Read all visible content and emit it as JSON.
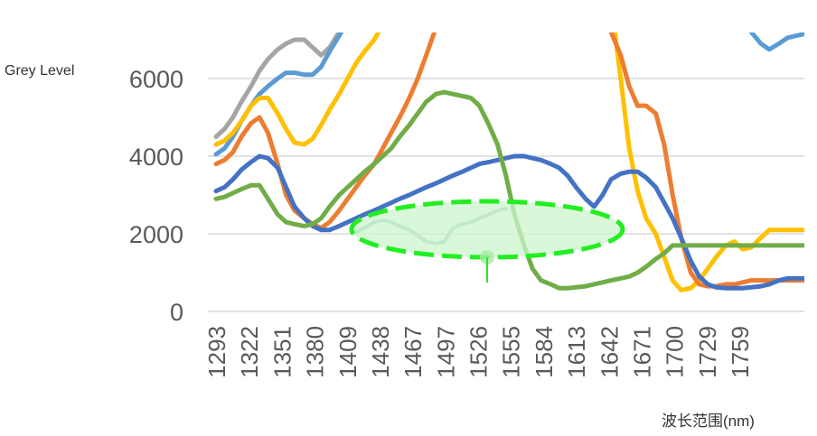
{
  "chart_data": {
    "type": "line",
    "title": "",
    "ylabel": "Grey Level",
    "xlabel": "波长范围(nm)",
    "ylim": [
      0,
      7000
    ],
    "yticks": [
      0,
      2000,
      4000,
      6000
    ],
    "xticks": [
      "1293",
      "1322",
      "1351",
      "1380",
      "1409",
      "1438",
      "1467",
      "1497",
      "1526",
      "1555",
      "1584",
      "1613",
      "1642",
      "1671",
      "1700",
      "1729",
      "1759"
    ],
    "x": [
      1293,
      1300,
      1307,
      1314,
      1322,
      1329,
      1336,
      1344,
      1351,
      1358,
      1366,
      1373,
      1380,
      1387,
      1395,
      1402,
      1409,
      1416,
      1424,
      1431,
      1438,
      1445,
      1453,
      1460,
      1467,
      1475,
      1482,
      1489,
      1497,
      1504,
      1511,
      1519,
      1526,
      1533,
      1540,
      1548,
      1555,
      1562,
      1570,
      1577,
      1584,
      1591,
      1599,
      1606,
      1613,
      1620,
      1628,
      1635,
      1642,
      1649,
      1657,
      1664,
      1671,
      1678,
      1686,
      1693,
      1700,
      1707,
      1715,
      1722,
      1729,
      1736,
      1744,
      1751,
      1759,
      1766,
      1773,
      1780
    ],
    "grid": "horizontal",
    "colors": {
      "grid": "#d9d9d9",
      "ellipse_stroke": "#22ee22",
      "ellipse_fill": "#ccf5cc"
    },
    "series": [
      {
        "color": "#a5a5a5",
        "values": [
          4500,
          4700,
          5000,
          5400,
          5800,
          6200,
          6500,
          6750,
          6900,
          7000,
          7000,
          6800,
          6600,
          6800,
          7200,
          7500,
          7800,
          8000,
          8000,
          8000,
          8000,
          8000,
          8000,
          8000,
          8000,
          8000,
          8000,
          8000,
          8000,
          8000,
          8000,
          8000,
          8000,
          8000,
          8000,
          8000,
          8000,
          8000,
          8000,
          8000,
          8000,
          8000,
          8000,
          8000,
          8000,
          8000,
          8000,
          8000,
          8000,
          8000,
          8000,
          8000,
          8000,
          8000,
          8000,
          8000,
          8000,
          8000,
          8000,
          8000,
          8000,
          8000,
          8000,
          8000,
          8000,
          8000,
          8000,
          8000
        ]
      },
      {
        "color": "#5b9bd5",
        "values": [
          4050,
          4200,
          4500,
          4900,
          5300,
          5600,
          5800,
          6000,
          6150,
          6150,
          6100,
          6100,
          6300,
          6700,
          7100,
          7500,
          7800,
          8000,
          8000,
          8000,
          8000,
          8000,
          8000,
          8000,
          8000,
          8000,
          8000,
          8000,
          8000,
          8000,
          8000,
          8000,
          8000,
          8000,
          8000,
          8000,
          8000,
          8000,
          8000,
          8000,
          8000,
          8000,
          8000,
          8000,
          8000,
          8000,
          8000,
          8000,
          8000,
          8000,
          8000,
          8000,
          8000,
          8000,
          8000,
          8000,
          8000,
          8000,
          8000,
          8000,
          8000,
          7200,
          6900,
          6750,
          6900,
          7050,
          7100,
          7150
        ]
      },
      {
        "color": "#ffc000",
        "values": [
          4300,
          4400,
          4600,
          4900,
          5300,
          5500,
          5500,
          5100,
          4700,
          4350,
          4300,
          4450,
          4800,
          5200,
          5600,
          6000,
          6400,
          6700,
          7000,
          7400,
          7800,
          8000,
          8000,
          8000,
          8000,
          8000,
          8000,
          8000,
          8000,
          8000,
          8000,
          8000,
          8000,
          8000,
          8000,
          8000,
          8000,
          8000,
          8000,
          8000,
          8000,
          8000,
          8000,
          8000,
          8000,
          8000,
          6000,
          4200,
          3100,
          2400,
          2000,
          1400,
          800,
          550,
          600,
          800,
          1100,
          1400,
          1700,
          1800,
          1600,
          1650,
          1900,
          2100,
          2100,
          2100,
          2100,
          2100
        ]
      },
      {
        "color": "#ed7d31",
        "values": [
          3800,
          3900,
          4100,
          4500,
          4850,
          5000,
          4600,
          3800,
          3000,
          2600,
          2400,
          2250,
          2150,
          2300,
          2600,
          2900,
          3200,
          3500,
          3800,
          4200,
          4600,
          5000,
          5500,
          6000,
          6600,
          7300,
          8000,
          8000,
          8000,
          8000,
          8000,
          8000,
          8000,
          8000,
          8000,
          8000,
          8000,
          8000,
          8000,
          8000,
          8000,
          8000,
          8000,
          8000,
          8000,
          7200,
          6600,
          5800,
          5300,
          5300,
          5100,
          4300,
          3000,
          1900,
          1000,
          700,
          650,
          650,
          700,
          700,
          750,
          800,
          800,
          800,
          800,
          800,
          800,
          800
        ]
      },
      {
        "color": "#4472c4",
        "values": [
          3100,
          3200,
          3400,
          3650,
          3850,
          4000,
          3950,
          3700,
          3200,
          2700,
          2400,
          2200,
          2100,
          2100,
          2200,
          2300,
          2400,
          2500,
          2600,
          2700,
          2800,
          2900,
          3000,
          3100,
          3200,
          3300,
          3400,
          3500,
          3600,
          3700,
          3800,
          3850,
          3900,
          3950,
          4000,
          4000,
          3950,
          3900,
          3800,
          3700,
          3500,
          3200,
          2900,
          2700,
          3000,
          3400,
          3550,
          3600,
          3600,
          3450,
          3200,
          2800,
          2400,
          1900,
          1300,
          900,
          700,
          620,
          600,
          600,
          600,
          620,
          650,
          700,
          800,
          850,
          850,
          850
        ]
      },
      {
        "color": "#70ad47",
        "values": [
          2900,
          2950,
          3050,
          3150,
          3250,
          3250,
          2900,
          2500,
          2300,
          2250,
          2200,
          2250,
          2400,
          2700,
          3000,
          3200,
          3400,
          3600,
          3800,
          4000,
          4200,
          4500,
          4800,
          5100,
          5400,
          5600,
          5650,
          5600,
          5550,
          5500,
          5300,
          4800,
          4300,
          3500,
          2500,
          1700,
          1100,
          800,
          700,
          600,
          600,
          620,
          650,
          700,
          750,
          800,
          850,
          900,
          1000,
          1150,
          1350,
          1500,
          1700,
          1700,
          1700,
          1700,
          1700,
          1700,
          1700,
          1700,
          1700,
          1700,
          1700,
          1700,
          1700,
          1700,
          1700,
          1700
        ]
      },
      {
        "color": "#9dc3c6",
        "values": [
          null,
          null,
          null,
          null,
          null,
          null,
          null,
          null,
          null,
          null,
          null,
          null,
          null,
          null,
          null,
          null,
          2050,
          2150,
          2300,
          2350,
          2300,
          2200,
          2100,
          1950,
          1800,
          1750,
          1800,
          2150,
          2250,
          2300,
          2400,
          2500,
          2600,
          2650,
          null,
          null,
          null,
          null,
          null,
          null,
          null,
          null,
          null,
          null,
          null,
          null,
          null,
          null,
          null,
          null,
          null,
          null,
          null,
          null,
          null,
          null,
          null,
          null,
          null,
          null,
          null,
          null,
          null,
          null,
          null,
          null,
          null,
          null
        ]
      }
    ]
  }
}
